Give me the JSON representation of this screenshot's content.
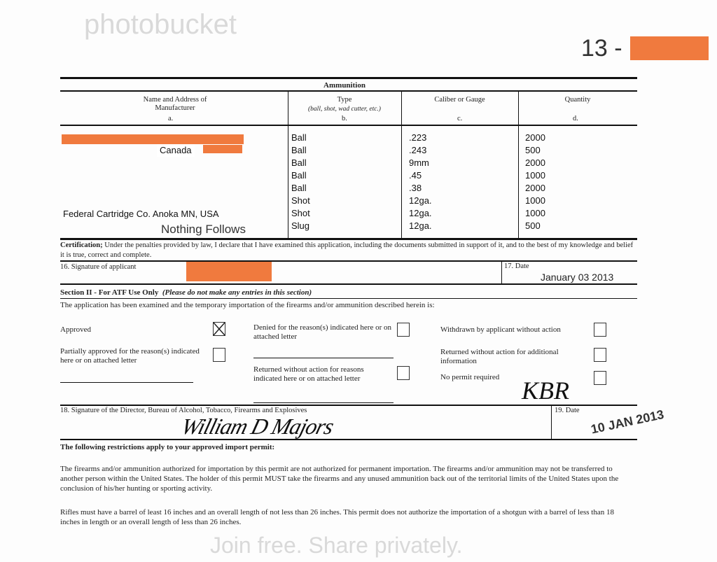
{
  "page_number_prefix": "13 -",
  "table": {
    "title": "Ammunition",
    "headers": [
      {
        "label": "Name and Address of Manufacturer",
        "letter": "a."
      },
      {
        "label": "Type",
        "sub": "(ball, shot, wad cutter, etc.)",
        "letter": "b."
      },
      {
        "label": "Caliber or Gauge",
        "letter": "c."
      },
      {
        "label": "Quantity",
        "letter": "d."
      }
    ],
    "manufacturer_1": "Canada",
    "manufacturer_2": "Federal Cartridge Co.  Anoka MN, USA",
    "rows": [
      {
        "type": "Ball",
        "caliber": ".223",
        "quantity": "2000"
      },
      {
        "type": "Ball",
        "caliber": ".243",
        "quantity": "500"
      },
      {
        "type": "Ball",
        "caliber": "9mm",
        "quantity": "2000"
      },
      {
        "type": "Ball",
        "caliber": ".45",
        "quantity": "1000"
      },
      {
        "type": "Ball",
        "caliber": ".38",
        "quantity": "2000"
      },
      {
        "type": "Shot",
        "caliber": "12ga.",
        "quantity": "1000"
      },
      {
        "type": "Shot",
        "caliber": "12ga.",
        "quantity": "1000"
      },
      {
        "type": "Slug",
        "caliber": "12ga.",
        "quantity": "500"
      }
    ],
    "nothing_follows": "Nothing Follows"
  },
  "certification": {
    "label": "Certification;",
    "text": "Under the penalties provided by law, I declare that I have examined this application, including the documents submitted in support of it, and to the best of my knowledge and belief it is true, correct and complete."
  },
  "signature_applicant_label": "16. Signature of applicant",
  "date_label": "17. Date",
  "date_value": "January 03 2013",
  "section2": {
    "title": "Section II - For ATF Use Only",
    "note": "(Please do not make any entries in this section)",
    "intro": "The application has been examined and the temporary importation of the firearms and/or ammunition described herein is:",
    "options": [
      {
        "label": "Approved",
        "checked": true
      },
      {
        "label": "Partially approved for the reason(s) indicated here or on attached letter",
        "checked": false
      },
      {
        "label": "Denied for the reason(s) indicated here or on attached letter",
        "checked": false
      },
      {
        "label": "Returned without  action for reasons indicated here or on attached letter",
        "checked": false
      },
      {
        "label": "Withdrawn by applicant without action",
        "checked": false
      },
      {
        "label": "Returned without action for additional information",
        "checked": false
      },
      {
        "label": "No permit required",
        "checked": false
      }
    ]
  },
  "director_signature_label": "18. Signature of the Director, Bureau of Alcohol, Tobacco, Firearms and Explosives",
  "director_signature": "William D Majors",
  "initials": "KBR",
  "date19_label": "19. Date",
  "date19_stamp": "10 JAN 2013",
  "restrictions": {
    "title": "The following restrictions apply to your approved import permit:",
    "p1": "The firearms and/or ammunition authorized for importation by this permit are not authorized for permanent importation.  The firearms and/or ammunition may not be transferred to another person within the United States.  The holder of this permit MUST take the firearms and any unused ammunition back out of the territorial limits of the United States upon the conclusion of his/her hunting or sporting activity.",
    "p2": "Rifles must have a barrel of least 16 inches and an overall length of not less than 26 inches.  This permit does not authorize the importation of a shotgun with a barrel of less than 18 inches in length or an overall length of less than 26 inches."
  },
  "watermark": {
    "brand": "photobucket",
    "slogan": "Join free. Share privately."
  },
  "colors": {
    "redaction": "#f07a3e"
  }
}
